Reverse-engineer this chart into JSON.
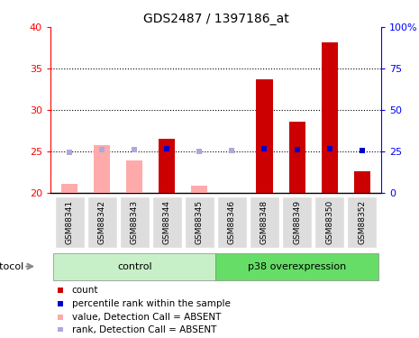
{
  "title": "GDS2487 / 1397186_at",
  "samples": [
    "GSM88341",
    "GSM88342",
    "GSM88343",
    "GSM88344",
    "GSM88345",
    "GSM88346",
    "GSM88348",
    "GSM88349",
    "GSM88350",
    "GSM88352"
  ],
  "absent": [
    true,
    true,
    true,
    false,
    true,
    true,
    false,
    false,
    false,
    false
  ],
  "count_values": [
    21.1,
    25.8,
    23.9,
    26.5,
    20.9,
    20.1,
    33.7,
    28.6,
    38.2,
    22.6
  ],
  "rank_values": [
    24.9,
    26.2,
    26.1,
    26.6,
    25.0,
    25.6,
    26.9,
    26.5,
    26.8,
    25.6
  ],
  "ylim_left": [
    20,
    40
  ],
  "ylim_right": [
    0,
    100
  ],
  "yticks_left": [
    20,
    25,
    30,
    35,
    40
  ],
  "yticks_right": [
    0,
    25,
    50,
    75,
    100
  ],
  "ytick_labels_right": [
    "0",
    "25",
    "50",
    "75",
    "100%"
  ],
  "groups": [
    {
      "label": "control",
      "start": 0,
      "end": 4,
      "color": "#c8f0c8"
    },
    {
      "label": "p38 overexpression",
      "start": 5,
      "end": 9,
      "color": "#66dd66"
    }
  ],
  "color_count_present": "#cc0000",
  "color_count_absent": "#ffaaaa",
  "color_rank_present": "#0000cc",
  "color_rank_absent": "#aaaadd",
  "bar_width": 0.5,
  "legend": [
    {
      "label": "count",
      "color": "#cc0000"
    },
    {
      "label": "percentile rank within the sample",
      "color": "#0000cc"
    },
    {
      "label": "value, Detection Call = ABSENT",
      "color": "#ffaaaa"
    },
    {
      "label": "rank, Detection Call = ABSENT",
      "color": "#aaaadd"
    }
  ],
  "protocol_label": "protocol",
  "background_color": "#ffffff",
  "xtick_bg": "#dddddd"
}
